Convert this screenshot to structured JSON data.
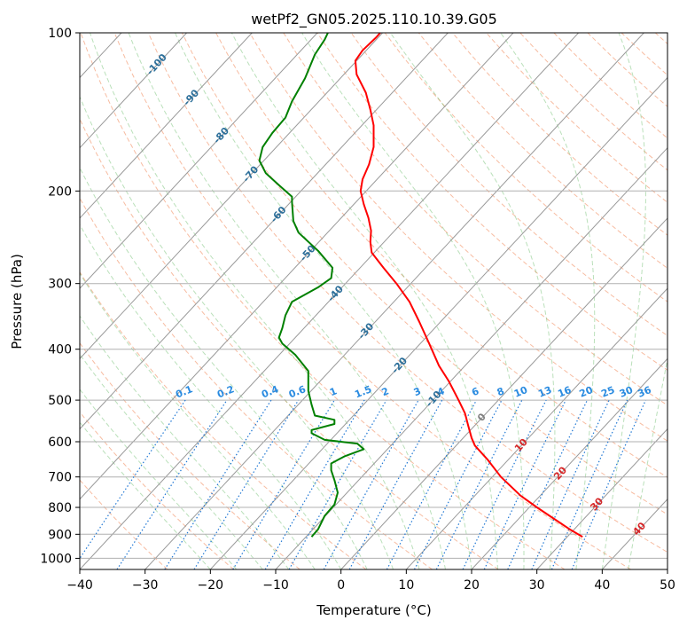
{
  "chart_data": {
    "type": "line",
    "title": "wetPf2_GN05.2025.110.10.39.G05",
    "xlabel": "Temperature (°C)",
    "ylabel": "Pressure (hPa)",
    "xlim": [
      -40,
      50
    ],
    "ylim": [
      1050,
      100
    ],
    "y_scale": "log",
    "grid": true,
    "x_ticks": [
      "−40",
      "−30",
      "−20",
      "−10",
      "0",
      "10",
      "20",
      "30",
      "40",
      "50"
    ],
    "y_ticks": [
      "100",
      "200",
      "300",
      "400",
      "500",
      "600",
      "700",
      "800",
      "900",
      "1000"
    ],
    "isotherm_labels": [
      "-100",
      "-90",
      "-80",
      "-70",
      "-60",
      "-50",
      "-40",
      "-30",
      "-20",
      "-10",
      "0",
      "10",
      "20",
      "30",
      "40"
    ],
    "mixing_ratio_labels": [
      "0.1",
      "0.2",
      "0.4",
      "0.6",
      "1",
      "1.5",
      "2",
      "3",
      "4",
      "6",
      "8",
      "10",
      "13",
      "16",
      "20",
      "25",
      "30",
      "36"
    ],
    "series": [
      {
        "color": "#ff0000",
        "points": [
          [
            37.0,
            910
          ],
          [
            35.0,
            880
          ],
          [
            30.0,
            800
          ],
          [
            27.5,
            760
          ],
          [
            24.5,
            700
          ],
          [
            22.5,
            650
          ],
          [
            20.5,
            610
          ],
          [
            20.0,
            590
          ],
          [
            19.5,
            560
          ],
          [
            19.0,
            530
          ],
          [
            18.0,
            500
          ],
          [
            16.5,
            460
          ],
          [
            15.0,
            430
          ],
          [
            13.5,
            390
          ],
          [
            12.0,
            355
          ],
          [
            10.5,
            325
          ],
          [
            8.5,
            300
          ],
          [
            6.5,
            280
          ],
          [
            4.7,
            262
          ],
          [
            4.5,
            250
          ],
          [
            4.6,
            238
          ],
          [
            4.2,
            225
          ],
          [
            3.5,
            212
          ],
          [
            3.0,
            200
          ],
          [
            3.3,
            190
          ],
          [
            4.3,
            178
          ],
          [
            5.0,
            165
          ],
          [
            5.0,
            150
          ],
          [
            4.5,
            140
          ],
          [
            3.8,
            130
          ],
          [
            2.4,
            120
          ],
          [
            2.2,
            113
          ],
          [
            3.3,
            108
          ],
          [
            5.4,
            102
          ],
          [
            6.0,
            100
          ]
        ]
      },
      {
        "color": "#008000",
        "points": [
          [
            -4.5,
            910
          ],
          [
            -3.5,
            880
          ],
          [
            -2.5,
            830
          ],
          [
            -1.0,
            790
          ],
          [
            -0.5,
            750
          ],
          [
            -1.0,
            710
          ],
          [
            -1.5,
            680
          ],
          [
            -1.5,
            660
          ],
          [
            0.5,
            640
          ],
          [
            3.5,
            620
          ],
          [
            2.5,
            605
          ],
          [
            -2.5,
            595
          ],
          [
            -4.5,
            578
          ],
          [
            -4.5,
            570
          ],
          [
            -1.0,
            555
          ],
          [
            -1.0,
            545
          ],
          [
            -4.0,
            535
          ],
          [
            -4.5,
            510
          ],
          [
            -5.0,
            480
          ],
          [
            -5.0,
            440
          ],
          [
            -7.0,
            410
          ],
          [
            -9.0,
            390
          ],
          [
            -9.5,
            380
          ],
          [
            -9.0,
            365
          ],
          [
            -8.5,
            345
          ],
          [
            -7.5,
            325
          ],
          [
            -3.5,
            305
          ],
          [
            -1.5,
            293
          ],
          [
            -1.3,
            280
          ],
          [
            -3.5,
            260
          ],
          [
            -6.5,
            240
          ],
          [
            -7.3,
            228
          ],
          [
            -7.5,
            210
          ],
          [
            -7.5,
            205
          ],
          [
            -9.5,
            195
          ],
          [
            -11.5,
            185
          ],
          [
            -12.5,
            175
          ],
          [
            -12.0,
            165
          ],
          [
            -10.5,
            155
          ],
          [
            -8.5,
            145
          ],
          [
            -7.5,
            135
          ],
          [
            -5.5,
            122
          ],
          [
            -4.0,
            110
          ],
          [
            -2.5,
            103
          ],
          [
            -2.0,
            100
          ]
        ]
      }
    ]
  }
}
